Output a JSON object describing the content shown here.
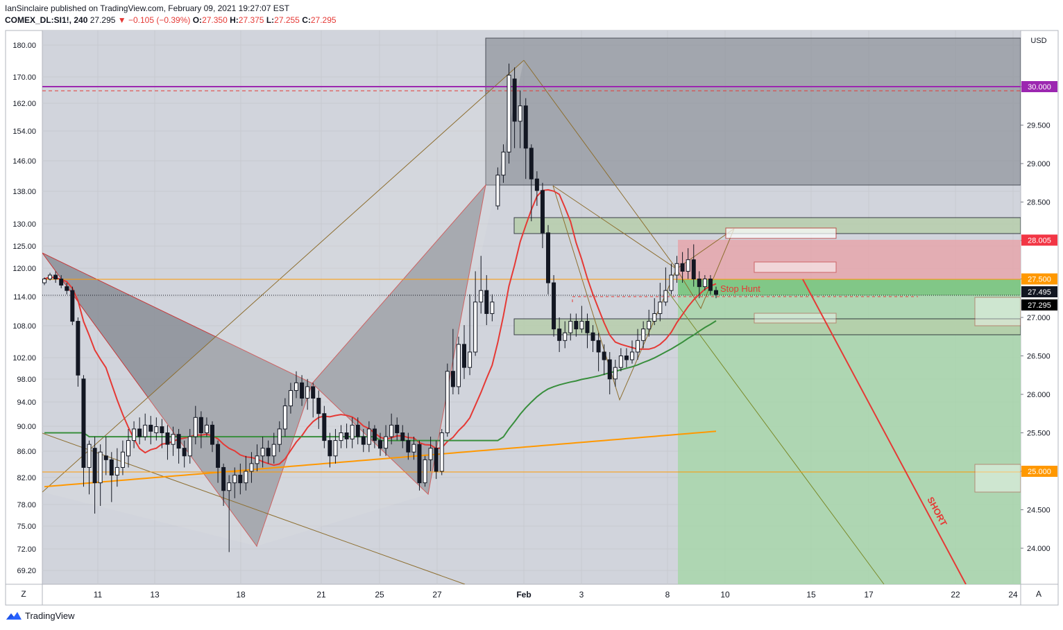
{
  "header": {
    "publisher": "IanSinclaire",
    "published_on": "published on TradingView.com, February 09, 2021 19:27:07 EST",
    "symbol": "COMEX_DL:SI1!, 240",
    "last": "27.295",
    "change": "▼ −0.105 (−0.39%)",
    "o_label": "O:",
    "o": "27.350",
    "h_label": "H:",
    "h": "27.375",
    "l_label": "L:",
    "l": "27.255",
    "c_label": "C:",
    "c": "27.295"
  },
  "footer": {
    "brand": "TradingView",
    "left_button": "Z",
    "right_button": "A"
  },
  "chart_data": {
    "type": "candlestick",
    "currency": "USD",
    "left_axis_ticks": [
      "180.00",
      "170.00",
      "162.00",
      "154.00",
      "146.00",
      "138.00",
      "130.00",
      "125.00",
      "120.00",
      "114.00",
      "108.00",
      "102.00",
      "98.00",
      "94.00",
      "90.00",
      "86.00",
      "82.00",
      "78.00",
      "75.00",
      "72.00",
      "69.20"
    ],
    "right_axis_ticks": [
      "30.000",
      "29.500",
      "29.000",
      "28.500",
      "28.000",
      "27.500",
      "27.000",
      "26.500",
      "26.000",
      "25.500",
      "25.000",
      "24.500",
      "24.000"
    ],
    "x_ticks": [
      "11",
      "13",
      "18",
      "21",
      "25",
      "27",
      "Feb",
      "3",
      "8",
      "10",
      "15",
      "17",
      "22",
      "24"
    ],
    "price_labels": [
      {
        "value": "30.000",
        "color": "#9c27b0"
      },
      {
        "value": "28.005",
        "color": "#f23645"
      },
      {
        "value": "27.500",
        "color": "#ff9800"
      },
      {
        "value": "27.495",
        "color": "#131722"
      },
      {
        "value": "27.295",
        "color": "#000000"
      },
      {
        "value": "25.000",
        "color": "#ff9800"
      }
    ],
    "annotations": [
      "Stop Hunt",
      "SHORT"
    ],
    "horizontal_levels": [
      30.0,
      27.5,
      25.0
    ],
    "moving_averages": [
      {
        "color": "#e53935",
        "last": 26.97
      },
      {
        "color": "#388e3c",
        "last": 26.22
      },
      {
        "color": "#ff9800",
        "last": 25.52
      }
    ],
    "candles": [
      [
        27.45,
        27.5,
        27.52,
        27.42
      ],
      [
        27.5,
        27.55,
        27.58,
        27.48
      ],
      [
        27.55,
        27.5,
        27.6,
        27.45
      ],
      [
        27.5,
        27.42,
        27.55,
        27.38
      ],
      [
        27.4,
        27.35,
        27.45,
        27.3
      ],
      [
        27.35,
        26.95,
        27.4,
        26.9
      ],
      [
        26.95,
        26.25,
        27.0,
        26.1
      ],
      [
        26.2,
        25.05,
        26.25,
        24.8
      ],
      [
        25.05,
        25.35,
        25.4,
        24.7
      ],
      [
        25.3,
        24.85,
        25.45,
        24.45
      ],
      [
        24.85,
        25.25,
        25.35,
        24.55
      ],
      [
        25.2,
        25.15,
        25.45,
        24.95
      ],
      [
        25.15,
        24.95,
        25.25,
        24.6
      ],
      [
        24.95,
        25.05,
        25.3,
        24.8
      ],
      [
        25.05,
        25.25,
        25.4,
        24.95
      ],
      [
        25.2,
        25.4,
        25.55,
        25.05
      ],
      [
        25.4,
        25.55,
        25.65,
        25.3
      ],
      [
        25.55,
        25.45,
        25.7,
        25.35
      ],
      [
        25.45,
        25.6,
        25.75,
        25.4
      ],
      [
        25.6,
        25.52,
        25.72,
        25.35
      ],
      [
        25.5,
        25.58,
        25.7,
        25.4
      ],
      [
        25.58,
        25.5,
        25.68,
        25.3
      ],
      [
        25.5,
        25.35,
        25.6,
        25.15
      ],
      [
        25.35,
        25.48,
        25.58,
        25.2
      ],
      [
        25.48,
        25.3,
        25.55,
        25.1
      ],
      [
        25.3,
        25.2,
        25.4,
        25.05
      ],
      [
        25.2,
        25.45,
        25.55,
        25.1
      ],
      [
        25.45,
        25.7,
        25.85,
        25.35
      ],
      [
        25.7,
        25.5,
        25.78,
        25.3
      ],
      [
        25.5,
        25.6,
        25.7,
        25.45
      ],
      [
        25.6,
        25.35,
        25.65,
        25.25
      ],
      [
        25.35,
        25.05,
        25.4,
        24.85
      ],
      [
        25.05,
        24.75,
        25.1,
        24.55
      ],
      [
        24.75,
        24.85,
        24.95,
        23.95
      ],
      [
        24.85,
        24.95,
        25.05,
        24.65
      ],
      [
        24.95,
        24.85,
        25.1,
        24.7
      ],
      [
        24.85,
        25.0,
        25.2,
        24.75
      ],
      [
        25.0,
        25.1,
        25.25,
        24.85
      ],
      [
        25.1,
        25.2,
        25.35,
        25.0
      ],
      [
        25.2,
        25.3,
        25.45,
        25.05
      ],
      [
        25.3,
        25.2,
        25.4,
        25.1
      ],
      [
        25.2,
        25.35,
        25.5,
        25.1
      ],
      [
        25.35,
        25.55,
        25.65,
        25.25
      ],
      [
        25.55,
        25.85,
        25.95,
        25.45
      ],
      [
        25.85,
        26.05,
        26.15,
        25.75
      ],
      [
        26.05,
        26.15,
        26.3,
        25.95
      ],
      [
        26.15,
        25.95,
        26.25,
        25.85
      ],
      [
        25.95,
        26.1,
        26.2,
        25.8
      ],
      [
        26.1,
        25.95,
        26.15,
        25.7
      ],
      [
        25.95,
        25.75,
        26.05,
        25.55
      ],
      [
        25.75,
        25.4,
        25.85,
        25.3
      ],
      [
        25.4,
        25.2,
        25.5,
        25.05
      ],
      [
        25.2,
        25.4,
        25.55,
        25.1
      ],
      [
        25.4,
        25.5,
        25.6,
        25.3
      ],
      [
        25.5,
        25.42,
        25.62,
        25.3
      ],
      [
        25.42,
        25.6,
        25.7,
        25.3
      ],
      [
        25.6,
        25.45,
        25.7,
        25.35
      ],
      [
        25.45,
        25.35,
        25.55,
        25.25
      ],
      [
        25.35,
        25.55,
        25.65,
        25.25
      ],
      [
        25.55,
        25.4,
        25.6,
        25.3
      ],
      [
        25.4,
        25.3,
        25.5,
        25.2
      ],
      [
        25.3,
        25.45,
        25.6,
        25.2
      ],
      [
        25.45,
        25.6,
        25.75,
        25.35
      ],
      [
        25.6,
        25.5,
        25.7,
        25.4
      ],
      [
        25.5,
        25.4,
        25.6,
        25.3
      ],
      [
        25.4,
        25.25,
        25.5,
        25.15
      ],
      [
        25.25,
        25.35,
        25.45,
        25.15
      ],
      [
        25.35,
        24.85,
        25.4,
        24.75
      ],
      [
        24.85,
        25.15,
        25.2,
        24.8
      ],
      [
        25.15,
        25.3,
        25.45,
        25.0
      ],
      [
        25.3,
        25.0,
        25.4,
        24.9
      ],
      [
        25.0,
        25.5,
        25.55,
        24.95
      ],
      [
        25.5,
        26.3,
        26.4,
        25.45
      ],
      [
        26.3,
        26.1,
        26.85,
        26.0
      ],
      [
        26.1,
        26.65,
        26.75,
        26.0
      ],
      [
        26.65,
        26.35,
        26.9,
        26.2
      ],
      [
        26.35,
        26.55,
        27.3,
        26.25
      ],
      [
        26.55,
        27.2,
        27.6,
        26.5
      ],
      [
        27.2,
        27.35,
        27.8,
        27.05
      ],
      [
        27.35,
        27.05,
        27.55,
        26.9
      ],
      [
        27.05,
        27.2,
        27.3,
        26.95
      ],
      [
        28.45,
        28.85,
        28.95,
        28.4
      ],
      [
        28.85,
        29.15,
        29.25,
        28.75
      ],
      [
        29.15,
        30.15,
        30.3,
        29.0
      ],
      [
        30.1,
        29.55,
        30.25,
        29.2
      ],
      [
        29.55,
        29.75,
        29.95,
        29.2
      ],
      [
        29.75,
        29.2,
        29.85,
        28.8
      ],
      [
        29.2,
        28.8,
        29.25,
        28.25
      ],
      [
        28.8,
        28.65,
        28.9,
        28.45
      ],
      [
        28.65,
        28.1,
        28.75,
        27.9
      ],
      [
        28.1,
        27.45,
        28.2,
        27.3
      ],
      [
        27.45,
        26.85,
        27.55,
        26.75
      ],
      [
        26.85,
        26.7,
        27.0,
        26.55
      ],
      [
        26.7,
        26.8,
        26.95,
        26.6
      ],
      [
        26.8,
        26.95,
        27.05,
        26.7
      ],
      [
        26.95,
        26.85,
        27.05,
        26.75
      ],
      [
        26.85,
        26.95,
        27.15,
        26.8
      ],
      [
        26.95,
        26.8,
        27.05,
        26.6
      ],
      [
        26.8,
        26.7,
        26.9,
        26.55
      ],
      [
        26.7,
        26.55,
        26.8,
        26.3
      ],
      [
        26.55,
        26.45,
        26.65,
        26.25
      ],
      [
        26.45,
        26.2,
        26.55,
        26.0
      ],
      [
        26.2,
        26.35,
        26.45,
        26.1
      ],
      [
        26.35,
        26.5,
        26.6,
        26.3
      ],
      [
        26.5,
        26.45,
        26.6,
        26.35
      ],
      [
        26.45,
        26.55,
        26.7,
        26.4
      ],
      [
        26.55,
        26.7,
        26.85,
        26.45
      ],
      [
        26.7,
        26.85,
        26.95,
        26.6
      ],
      [
        26.85,
        26.95,
        27.1,
        26.75
      ],
      [
        26.95,
        27.05,
        27.25,
        26.9
      ],
      [
        27.05,
        27.2,
        27.45,
        26.95
      ],
      [
        27.2,
        27.35,
        27.65,
        27.15
      ],
      [
        27.35,
        27.55,
        27.7,
        27.3
      ],
      [
        27.55,
        27.7,
        27.8,
        27.45
      ],
      [
        27.7,
        27.6,
        27.85,
        27.45
      ],
      [
        27.6,
        27.75,
        27.9,
        27.5
      ],
      [
        27.75,
        27.5,
        27.95,
        27.4
      ],
      [
        27.5,
        27.4,
        27.6,
        27.25
      ],
      [
        27.4,
        27.5,
        27.55,
        27.35
      ],
      [
        27.5,
        27.35,
        27.55,
        27.3
      ],
      [
        27.35,
        27.3,
        27.4,
        27.25
      ]
    ]
  }
}
